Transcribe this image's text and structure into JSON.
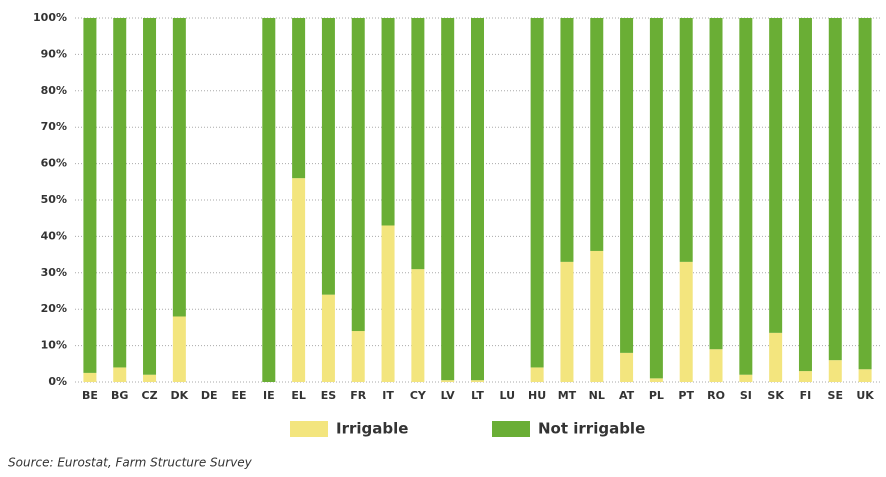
{
  "chart_data": {
    "type": "stacked_bar",
    "categories": [
      "BE",
      "BG",
      "CZ",
      "DK",
      "DE",
      "EE",
      "IE",
      "EL",
      "ES",
      "FR",
      "IT",
      "CY",
      "LV",
      "LT",
      "LU",
      "HU",
      "MT",
      "NL",
      "AT",
      "PL",
      "PT",
      "RO",
      "SI",
      "SK",
      "FI",
      "SE",
      "UK"
    ],
    "series": [
      {
        "name": "Irrigable",
        "color": "#f3e57e",
        "values": [
          2.5,
          4,
          2,
          18,
          null,
          null,
          0,
          56,
          24,
          14,
          43,
          31,
          0.5,
          0.5,
          null,
          4,
          33,
          36,
          8,
          1,
          33,
          9,
          2,
          13.5,
          3,
          6,
          3.5
        ]
      },
      {
        "name": "Not irrigable",
        "color": "#6aae35",
        "values": [
          97.5,
          96,
          98,
          82,
          null,
          null,
          100,
          44,
          76,
          86,
          57,
          69,
          99.5,
          99.5,
          null,
          96,
          67,
          64,
          92,
          99,
          67,
          91,
          98,
          86.5,
          97,
          94,
          96.5
        ]
      }
    ],
    "ylim": [
      0,
      100
    ],
    "yticks": [
      {
        "value": 0,
        "label": "0%"
      },
      {
        "value": 10,
        "label": "10%"
      },
      {
        "value": 20,
        "label": "20%"
      },
      {
        "value": 30,
        "label": "30%"
      },
      {
        "value": 40,
        "label": "40%"
      },
      {
        "value": 50,
        "label": "50%"
      },
      {
        "value": 60,
        "label": "60%"
      },
      {
        "value": 70,
        "label": "70%"
      },
      {
        "value": 80,
        "label": "80%"
      },
      {
        "value": 90,
        "label": "90%"
      },
      {
        "value": 100,
        "label": "100%"
      }
    ],
    "grid": true,
    "annotation": "Source: Eurostat, Farm Structure Survey"
  }
}
